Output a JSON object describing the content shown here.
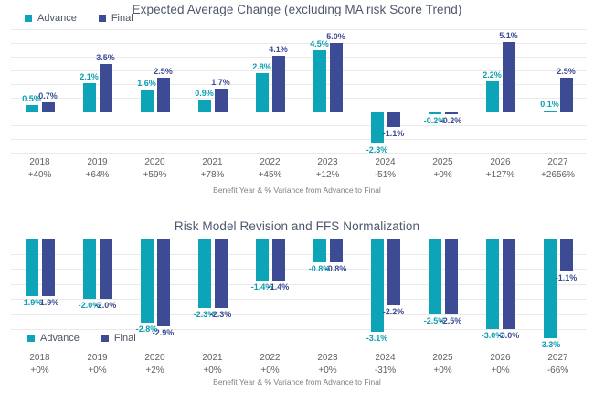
{
  "colors": {
    "advance": "#0EA4B8",
    "final": "#3C4B94",
    "advance_label": "#0C9DB1",
    "final_label": "#3C4B94",
    "gridline": "#EAEAEA",
    "zero_line": "#D8D8D8",
    "title_text": "#4E586C",
    "axis_text": "#606060",
    "note_text": "#808080"
  },
  "chart_data": [
    {
      "type": "bar",
      "title": "Expected Average Change (excluding MA risk Score Trend)",
      "xlabel": "Benefit Year & % Variance from Advance to Final",
      "ylabel": "",
      "unit": "%",
      "ylim": [
        -3,
        6
      ],
      "grid": true,
      "legend_position": "top-left",
      "categories": [
        "2018",
        "2019",
        "2020",
        "2021",
        "2022",
        "2023",
        "2024",
        "2025",
        "2026",
        "2027"
      ],
      "variance_labels": [
        "+40%",
        "+64%",
        "+59%",
        "+78%",
        "+45%",
        "+12%",
        "-51%",
        "+0%",
        "+127%",
        "+2656%"
      ],
      "series": [
        {
          "name": "Advance",
          "values": [
            0.5,
            2.1,
            1.6,
            0.9,
            2.8,
            4.5,
            -2.3,
            -0.2,
            2.2,
            0.1
          ]
        },
        {
          "name": "Final",
          "values": [
            0.7,
            3.5,
            2.5,
            1.7,
            4.1,
            5.0,
            -1.1,
            -0.2,
            5.1,
            2.5
          ]
        }
      ]
    },
    {
      "type": "bar",
      "title": "Risk Model Revision and FFS Normalization",
      "xlabel": "Benefit Year & % Variance from Advance to Final",
      "ylabel": "",
      "unit": "%",
      "ylim": [
        -3.5,
        0
      ],
      "grid": true,
      "legend_position": "bottom-left",
      "categories": [
        "2018",
        "2019",
        "2020",
        "2021",
        "2022",
        "2023",
        "2024",
        "2025",
        "2026",
        "2027"
      ],
      "variance_labels": [
        "+0%",
        "+0%",
        "+2%",
        "+0%",
        "+0%",
        "+0%",
        "-31%",
        "+0%",
        "+0%",
        "-66%"
      ],
      "series": [
        {
          "name": "Advance",
          "values": [
            -1.9,
            -2.0,
            -2.8,
            -2.3,
            -1.4,
            -0.8,
            -3.1,
            -2.5,
            -3.0,
            -3.3
          ]
        },
        {
          "name": "Final",
          "values": [
            -1.9,
            -2.0,
            -2.9,
            -2.3,
            -1.4,
            -0.8,
            -2.2,
            -2.5,
            -3.0,
            -1.1
          ]
        }
      ]
    }
  ]
}
